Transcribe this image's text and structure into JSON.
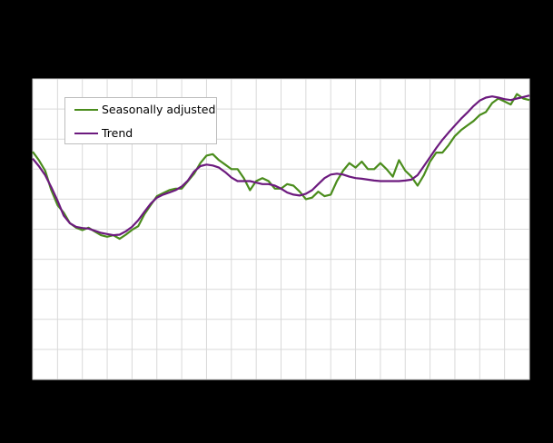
{
  "chart_data": {
    "type": "line",
    "title": "",
    "xlabel": "",
    "ylabel": "",
    "note": "Axis tick labels are not visible (rendered black on black). Values are expressed in gridline units: 0 = bottom of plot, 10 = top of plot; 20 vertical grid columns span the x range.",
    "ylim": [
      0,
      10
    ],
    "grid": true,
    "legend_position": "upper-left, inside plot",
    "x": [
      0,
      1,
      2,
      3,
      4,
      5,
      6,
      7,
      8,
      9,
      10,
      11,
      12,
      13,
      14,
      15,
      16,
      17,
      18,
      19,
      20,
      21,
      22,
      23,
      24,
      25,
      26,
      27,
      28,
      29,
      30,
      31,
      32,
      33,
      34,
      35,
      36,
      37,
      38,
      39,
      40,
      41,
      42,
      43,
      44,
      45,
      46,
      47,
      48,
      49,
      50,
      51,
      52,
      53,
      54,
      55,
      56,
      57,
      58,
      59,
      60,
      61,
      62,
      63,
      64,
      65,
      66,
      67,
      68,
      69,
      70,
      71,
      72,
      73,
      74,
      75,
      76,
      77,
      78,
      79,
      80
    ],
    "series": [
      {
        "name": "Seasonally adjusted",
        "color": "#4a8c1c",
        "values": [
          7.58,
          7.3,
          6.95,
          6.3,
          5.8,
          5.55,
          5.2,
          5.05,
          4.97,
          5.05,
          4.92,
          4.8,
          4.75,
          4.8,
          4.68,
          4.82,
          4.98,
          5.1,
          5.5,
          5.8,
          6.1,
          6.2,
          6.3,
          6.35,
          6.35,
          6.6,
          6.85,
          7.2,
          7.45,
          7.5,
          7.3,
          7.15,
          7.0,
          7.0,
          6.7,
          6.3,
          6.6,
          6.7,
          6.6,
          6.35,
          6.35,
          6.5,
          6.45,
          6.25,
          6.0,
          6.05,
          6.25,
          6.1,
          6.15,
          6.6,
          6.95,
          7.2,
          7.05,
          7.25,
          7.0,
          7.0,
          7.2,
          7.0,
          6.75,
          7.3,
          6.95,
          6.75,
          6.45,
          6.8,
          7.25,
          7.55,
          7.55,
          7.8,
          8.1,
          8.3,
          8.45,
          8.6,
          8.8,
          8.9,
          9.2,
          9.35,
          9.25,
          9.15,
          9.5,
          9.35,
          9.3
        ]
      },
      {
        "name": "Trend",
        "color": "#6c1a7e",
        "values": [
          7.35,
          7.1,
          6.8,
          6.4,
          5.95,
          5.45,
          5.2,
          5.08,
          5.04,
          5.02,
          4.95,
          4.88,
          4.84,
          4.8,
          4.82,
          4.93,
          5.08,
          5.3,
          5.58,
          5.85,
          6.05,
          6.15,
          6.22,
          6.3,
          6.42,
          6.62,
          6.92,
          7.1,
          7.15,
          7.12,
          7.05,
          6.9,
          6.72,
          6.6,
          6.6,
          6.6,
          6.55,
          6.5,
          6.5,
          6.45,
          6.35,
          6.22,
          6.15,
          6.12,
          6.18,
          6.3,
          6.5,
          6.7,
          6.82,
          6.85,
          6.82,
          6.75,
          6.7,
          6.68,
          6.65,
          6.62,
          6.6,
          6.6,
          6.6,
          6.6,
          6.62,
          6.65,
          6.8,
          7.1,
          7.4,
          7.7,
          7.98,
          8.22,
          8.45,
          8.68,
          8.88,
          9.1,
          9.28,
          9.38,
          9.42,
          9.38,
          9.33,
          9.3,
          9.35,
          9.4,
          9.45
        ]
      }
    ]
  },
  "legend": {
    "items": [
      {
        "label": "Seasonally adjusted",
        "color": "#4a8c1c"
      },
      {
        "label": "Trend",
        "color": "#6c1a7e"
      }
    ]
  },
  "colors": {
    "background": "#000000",
    "plot_background": "#ffffff",
    "grid": "#d9d9d9"
  }
}
